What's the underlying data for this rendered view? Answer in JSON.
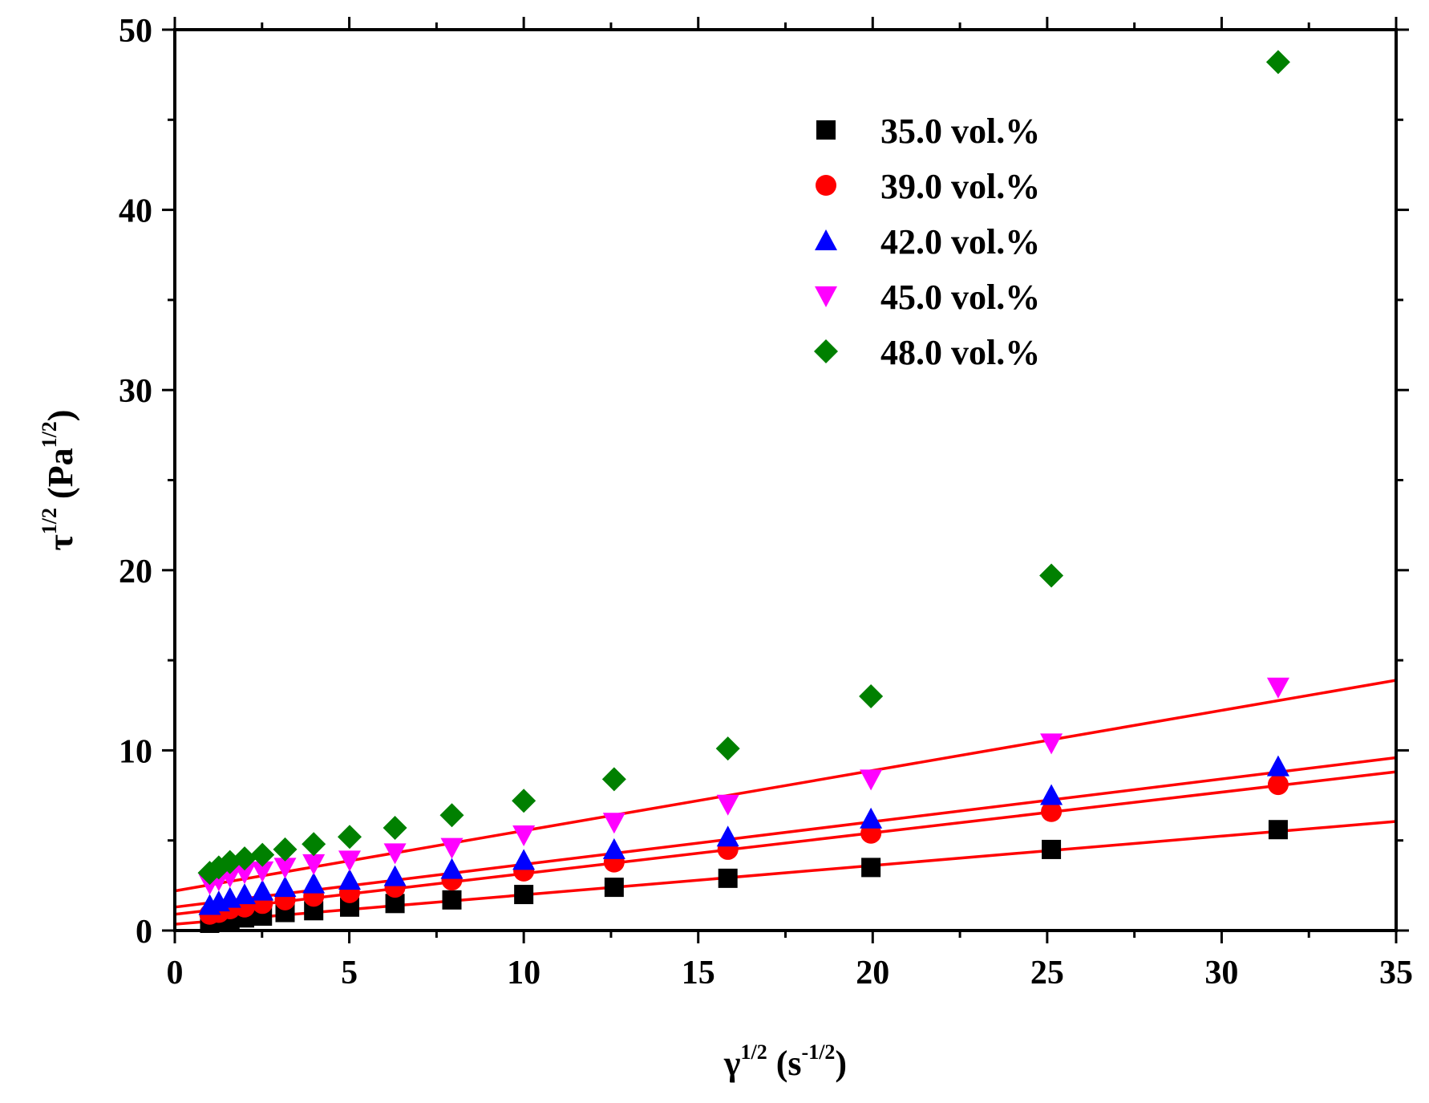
{
  "chart_data": {
    "type": "scatter",
    "title": "",
    "xlabel": {
      "base": "γ",
      "sup": "1/2",
      "unit_open": " (s",
      "unit_sup": "-1/2",
      "unit_close": ")"
    },
    "ylabel": {
      "base": "τ",
      "sup": "1/2",
      "unit_open": " (Pa",
      "unit_sup": "1/2",
      "unit_close": ")"
    },
    "xlim": [
      0,
      35
    ],
    "ylim": [
      0,
      50
    ],
    "x_ticks": [
      0,
      5,
      10,
      15,
      20,
      25,
      30,
      35
    ],
    "y_ticks": [
      0,
      10,
      20,
      30,
      40,
      50
    ],
    "x_tick_labels": [
      "0",
      "5",
      "10",
      "15",
      "20",
      "25",
      "30",
      "35"
    ],
    "y_tick_labels": [
      "0",
      "10",
      "20",
      "30",
      "40",
      "50"
    ],
    "grid": false,
    "legend_position": "top-right",
    "x": [
      1.0,
      1.26,
      1.58,
      2.0,
      2.51,
      3.16,
      3.98,
      5.01,
      6.31,
      7.94,
      10.0,
      12.59,
      15.85,
      19.95,
      25.12,
      31.62
    ],
    "series": [
      {
        "name": "35.0 vol.%",
        "marker": "square",
        "color": "#000000",
        "values": [
          0.4,
          0.5,
          0.6,
          0.7,
          0.8,
          1.0,
          1.1,
          1.3,
          1.5,
          1.7,
          2.0,
          2.4,
          2.9,
          3.5,
          4.5,
          5.6
        ],
        "fit": {
          "intercept": 0.35,
          "slope": 0.163
        }
      },
      {
        "name": "39.0 vol.%",
        "marker": "circle",
        "color": "#ff0000",
        "values": [
          0.9,
          1.0,
          1.2,
          1.3,
          1.5,
          1.7,
          1.9,
          2.1,
          2.4,
          2.8,
          3.3,
          3.8,
          4.5,
          5.4,
          6.6,
          8.1
        ],
        "fit": {
          "intercept": 0.9,
          "slope": 0.226
        }
      },
      {
        "name": "42.0 vol.%",
        "marker": "triangle-up",
        "color": "#0000ff",
        "values": [
          1.4,
          1.6,
          1.8,
          2.0,
          2.2,
          2.4,
          2.6,
          2.8,
          3.0,
          3.4,
          3.9,
          4.5,
          5.2,
          6.2,
          7.5,
          9.1
        ],
        "fit": {
          "intercept": 1.3,
          "slope": 0.237
        }
      },
      {
        "name": "45.0 vol.%",
        "marker": "triangle-down",
        "color": "#ff00ff",
        "values": [
          2.6,
          2.8,
          3.0,
          3.2,
          3.3,
          3.5,
          3.7,
          3.9,
          4.3,
          4.6,
          5.3,
          6.0,
          7.0,
          8.4,
          10.4,
          13.5
        ],
        "fit": {
          "intercept": 2.2,
          "slope": 0.334
        }
      },
      {
        "name": "48.0 vol.%",
        "marker": "diamond",
        "color": "#008000",
        "values": [
          3.2,
          3.5,
          3.8,
          4.0,
          4.2,
          4.5,
          4.8,
          5.2,
          5.7,
          6.4,
          7.2,
          8.4,
          10.1,
          13.0,
          19.7,
          48.2
        ],
        "fit": null
      }
    ],
    "fit_line_color": "#ff0000",
    "fit_range": [
      0,
      35
    ]
  }
}
